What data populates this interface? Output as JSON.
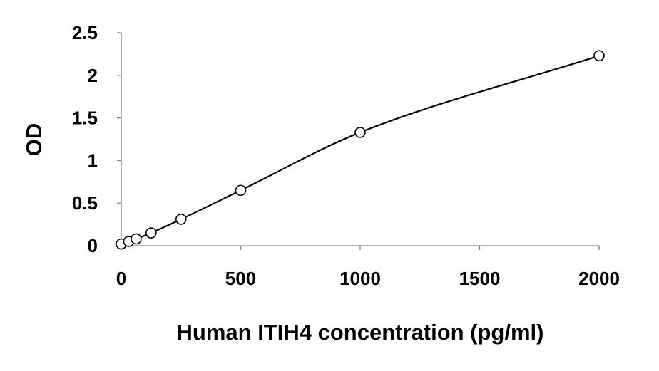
{
  "chart_data": {
    "type": "scatter",
    "title": "",
    "xlabel": "Human ITIH4 concentration (pg/ml)",
    "ylabel": "OD",
    "xlim": [
      0,
      2000
    ],
    "ylim": [
      0,
      2.5
    ],
    "x_ticks": [
      0,
      500,
      1000,
      1500,
      2000
    ],
    "y_ticks": [
      0,
      0.5,
      1,
      1.5,
      2,
      2.5
    ],
    "x_tick_labels": [
      "0",
      "500",
      "1000",
      "1500",
      "2000"
    ],
    "y_tick_labels": [
      "0",
      "0.5",
      "1",
      "1.5",
      "2",
      "2.5"
    ],
    "grid": false,
    "legend": "none",
    "series": [
      {
        "marker": "open-circle",
        "color": "#000000",
        "points": [
          {
            "x": 0,
            "y": 0.02
          },
          {
            "x": 31.25,
            "y": 0.05
          },
          {
            "x": 62.5,
            "y": 0.08
          },
          {
            "x": 125,
            "y": 0.15
          },
          {
            "x": 250,
            "y": 0.31
          },
          {
            "x": 500,
            "y": 0.65
          },
          {
            "x": 1000,
            "y": 1.33
          },
          {
            "x": 2000,
            "y": 2.23
          }
        ]
      }
    ],
    "fit_curve": {
      "type": "smooth trendline",
      "color": "#000000"
    }
  }
}
